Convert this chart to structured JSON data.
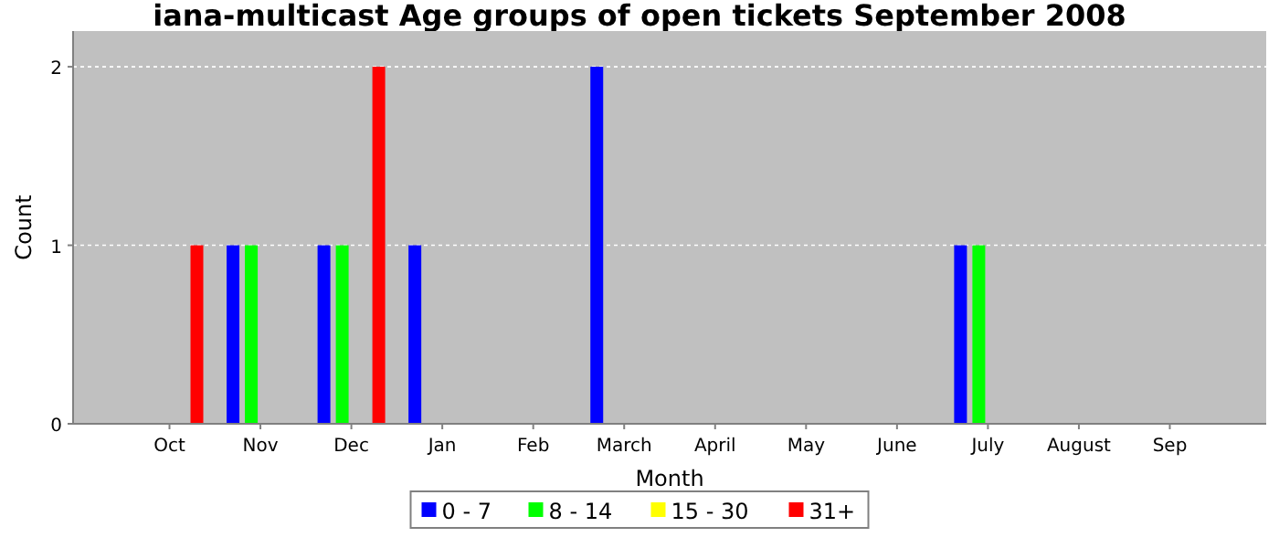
{
  "chart_data": {
    "type": "bar",
    "title": "iana-multicast Age groups of open tickets September 2008",
    "xlabel": "Month",
    "ylabel": "Count",
    "categories": [
      "Oct",
      "Nov",
      "Dec",
      "Jan",
      "Feb",
      "March",
      "April",
      "May",
      "June",
      "July",
      "August",
      "Sep"
    ],
    "series": [
      {
        "name": "0 - 7",
        "color": "#0000ff",
        "values": [
          0,
          1,
          1,
          1,
          0,
          2,
          0,
          0,
          0,
          1,
          0,
          0
        ]
      },
      {
        "name": "8 - 14",
        "color": "#00ff00",
        "values": [
          0,
          1,
          1,
          0,
          0,
          0,
          0,
          0,
          0,
          1,
          0,
          0
        ]
      },
      {
        "name": "15 - 30",
        "color": "#ffff00",
        "values": [
          0,
          0,
          0,
          0,
          0,
          0,
          0,
          0,
          0,
          0,
          0,
          0
        ]
      },
      {
        "name": "31+",
        "color": "#ff0000",
        "values": [
          1,
          0,
          2,
          0,
          0,
          0,
          0,
          0,
          0,
          0,
          0,
          0
        ]
      }
    ],
    "ylim": [
      0,
      2.2
    ],
    "yticks": [
      0,
      1,
      2
    ],
    "grid": "y",
    "legend": "bottom"
  }
}
